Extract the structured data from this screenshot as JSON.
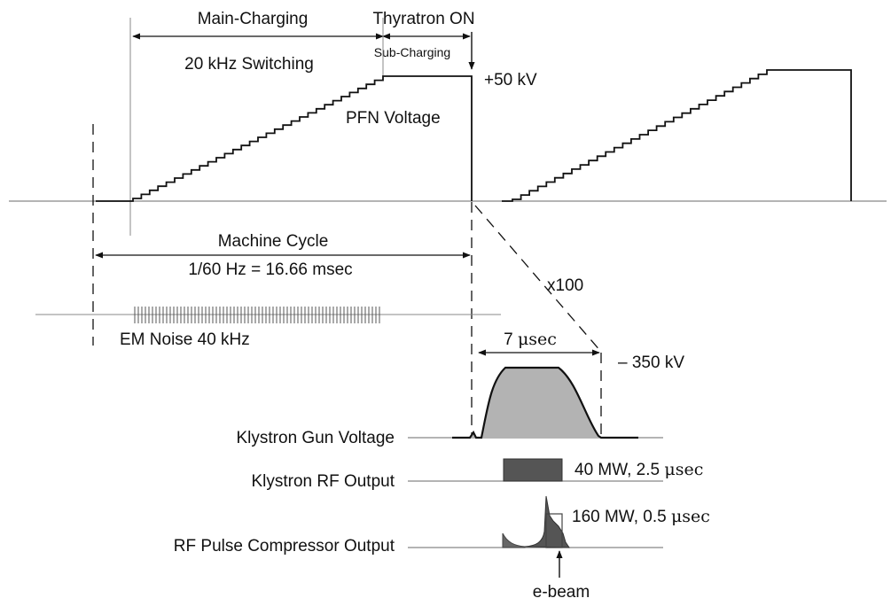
{
  "top": {
    "main_charging": "Main-Charging",
    "switching": "20 kHz Switching",
    "sub_charging": "Sub-Charging",
    "thyratron_on": "Thyratron ON",
    "voltage_level": "+50 kV",
    "pfn_voltage": "PFN Voltage"
  },
  "cycle": {
    "machine_cycle": "Machine Cycle",
    "period": "1/60 Hz = 16.66 msec",
    "zoom": "x100"
  },
  "noise": {
    "label": "EM Noise 40 kHz"
  },
  "pulse": {
    "width_value": "7 ",
    "width_unit": "μsec",
    "peak_voltage": "– 350 kV"
  },
  "outputs": {
    "gun_voltage": "Klystron Gun Voltage",
    "rf_output": "Klystron RF Output",
    "rf_output_spec_prefix": "40 MW, 2.5 ",
    "rf_output_spec_unit": "μsec",
    "compressor_output": "RF Pulse Compressor Output",
    "compressor_spec_prefix": "160 MW, 0.5 ",
    "compressor_spec_unit": "μsec",
    "ebeam": "e-beam"
  },
  "colors": {
    "line": "#111111",
    "pulse_fill": "#b3b3b3",
    "rf_fill": "#555555",
    "axis": "#888888"
  }
}
